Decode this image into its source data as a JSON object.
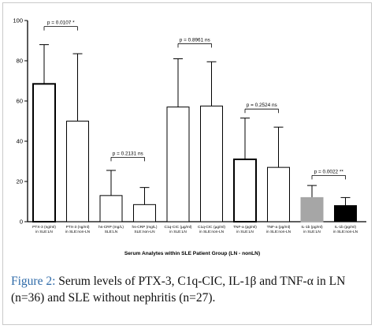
{
  "chart_data": {
    "type": "bar",
    "xlabel": "Serum Analytes within SLE Patient Group (LN - nonLN)",
    "ylim": [
      0,
      100
    ],
    "yticks": [
      0,
      20,
      40,
      60,
      80,
      100
    ],
    "grid": false,
    "legend": "none",
    "categories": [
      [
        "PTX-3 (ng/ml)",
        "in SLE:LN"
      ],
      [
        "PTX-3 (ng/ml)",
        "in SLE:non-LN"
      ],
      [
        "hs-CRP (mg/L)",
        "SLE:LN"
      ],
      [
        "hs-CRP (mg/L)",
        "SLE:non-LN"
      ],
      [
        "C1q-CIC (µg/ml)",
        "in SLE:LN"
      ],
      [
        "C1q-CIC (µg/ml)",
        "in SLE:non-LN"
      ],
      [
        "TNF-a (pg/ml)",
        "in SLE:LN"
      ],
      [
        "TNF-a (pg/ml)",
        "in SLE:non-LN"
      ],
      [
        "IL-1b (pg/ml)",
        "in SLE:LN"
      ],
      [
        "IL-1b (pg/ml)",
        "in SLE:non-LN"
      ]
    ],
    "values": [
      68.5,
      50,
      13,
      8.5,
      57,
      57.5,
      31,
      27,
      12,
      8
    ],
    "error_upper": [
      88,
      83.5,
      25.5,
      17,
      81,
      79.5,
      51.5,
      47,
      18,
      12
    ],
    "bar_fill": [
      "#ffffff",
      "#ffffff",
      "#ffffff",
      "#ffffff",
      "#ffffff",
      "#ffffff",
      "#ffffff",
      "#ffffff",
      "#a6a6a6",
      "#000000"
    ],
    "bar_border_weight": [
      "thick",
      "thin",
      "thin",
      "thin",
      "thin",
      "thin",
      "thick",
      "thin",
      "thin",
      "thin"
    ],
    "annotations": [
      {
        "text": "p = 0.0107 *",
        "pair": [
          0,
          1
        ],
        "y": 97
      },
      {
        "text": "p = 0.2131 ns",
        "pair": [
          2,
          3
        ],
        "y": 32
      },
      {
        "text": "p = 0.8961 ns",
        "pair": [
          4,
          5
        ],
        "y": 88.5
      },
      {
        "text": "p = 0.2524 ns",
        "pair": [
          6,
          7
        ],
        "y": 56
      },
      {
        "text": "p = 0.0022 **",
        "pair": [
          8,
          9
        ],
        "y": 23
      }
    ]
  },
  "caption": {
    "label": "Figure 2:",
    "text": " Serum levels of PTX-3, C1q-CIC, IL-1β and TNF-α in LN (n=36) and SLE without nephritis (n=27)."
  }
}
